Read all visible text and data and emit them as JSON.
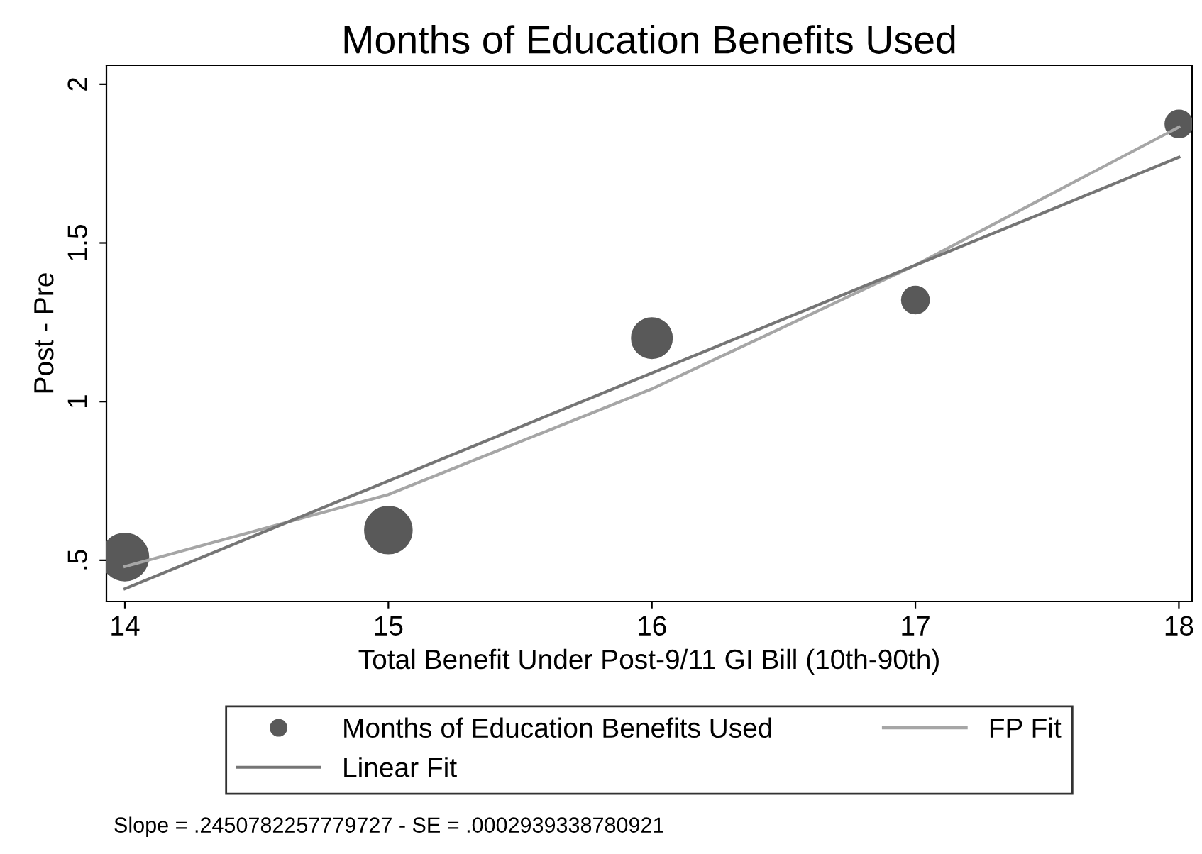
{
  "chart_data": {
    "type": "scatter",
    "title": "Months of Education Benefits Used",
    "xlabel": "Total Benefit Under Post-9/11 GI Bill (10th-90th)",
    "ylabel": "Post - Pre",
    "series": [
      {
        "name": "Months of Education Benefits Used",
        "color": "#595959",
        "x": [
          14,
          15,
          16,
          17,
          18
        ],
        "values": [
          0.51,
          0.595,
          1.2,
          1.32,
          1.875
        ],
        "sizes": [
          1,
          1,
          0.73,
          0.33,
          0.33
        ]
      },
      {
        "name": "FP Fit",
        "type": "line",
        "color": "#a6a6a6",
        "x": [
          14,
          15,
          16,
          17,
          18
        ],
        "values": [
          0.48,
          0.707,
          1.04,
          1.43,
          1.865
        ]
      },
      {
        "name": "Linear Fit",
        "type": "line",
        "color": "#757575",
        "x": [
          14,
          18
        ],
        "values": [
          0.41,
          1.77
        ]
      }
    ],
    "xlim": [
      13.93,
      18.05
    ],
    "xticks": [
      14,
      15,
      16,
      17,
      18
    ],
    "ylim": [
      0.37,
      2.06
    ],
    "yticks": [
      {
        "value": 0.5,
        "label": ".5"
      },
      1,
      1.5,
      2
    ],
    "grid": false,
    "legend": "bottom",
    "annotations": [
      "Slope = .2450782257779727 - SE = .0002939338780921"
    ]
  }
}
